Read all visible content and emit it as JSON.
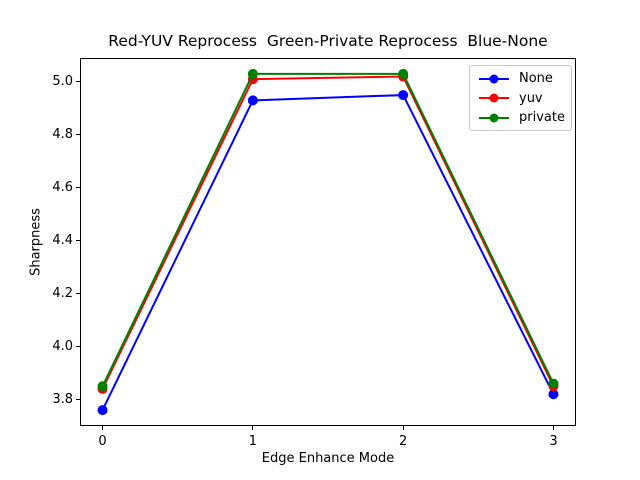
{
  "title": "Red-YUV Reprocess  Green-Private Reprocess  Blue-None",
  "axes": {
    "xlabel": "Edge Enhance Mode",
    "ylabel": "Sharpness"
  },
  "legend": {
    "entries": [
      {
        "label": "None",
        "color": "#0000ff"
      },
      {
        "label": "yuv",
        "color": "#ff0000"
      },
      {
        "label": "private",
        "color": "#008000"
      }
    ]
  },
  "chart_data": {
    "type": "line",
    "title": "Red-YUV Reprocess  Green-Private Reprocess  Blue-None",
    "xlabel": "Edge Enhance Mode",
    "ylabel": "Sharpness",
    "x": [
      0,
      1,
      2,
      3
    ],
    "series": [
      {
        "name": "None",
        "color": "#0000ff",
        "values": [
          3.76,
          4.93,
          4.95,
          3.82
        ]
      },
      {
        "name": "yuv",
        "color": "#ff0000",
        "values": [
          3.84,
          5.01,
          5.02,
          3.85
        ]
      },
      {
        "name": "private",
        "color": "#008000",
        "values": [
          3.85,
          5.03,
          5.03,
          3.86
        ]
      }
    ],
    "xlim": [
      -0.15,
      3.15
    ],
    "ylim": [
      3.7,
      5.09
    ],
    "xticks": [
      0,
      1,
      2,
      3
    ],
    "xtick_labels": [
      "0",
      "1",
      "2",
      "3"
    ],
    "yticks": [
      3.8,
      4.0,
      4.2,
      4.4,
      4.6,
      4.8,
      5.0
    ],
    "ytick_labels": [
      "3.8",
      "4.0",
      "4.2",
      "4.4",
      "4.6",
      "4.8",
      "5.0"
    ],
    "grid": false,
    "legend_position": "upper right",
    "marker": "circle",
    "line_width": 2,
    "marker_radius": 5
  }
}
